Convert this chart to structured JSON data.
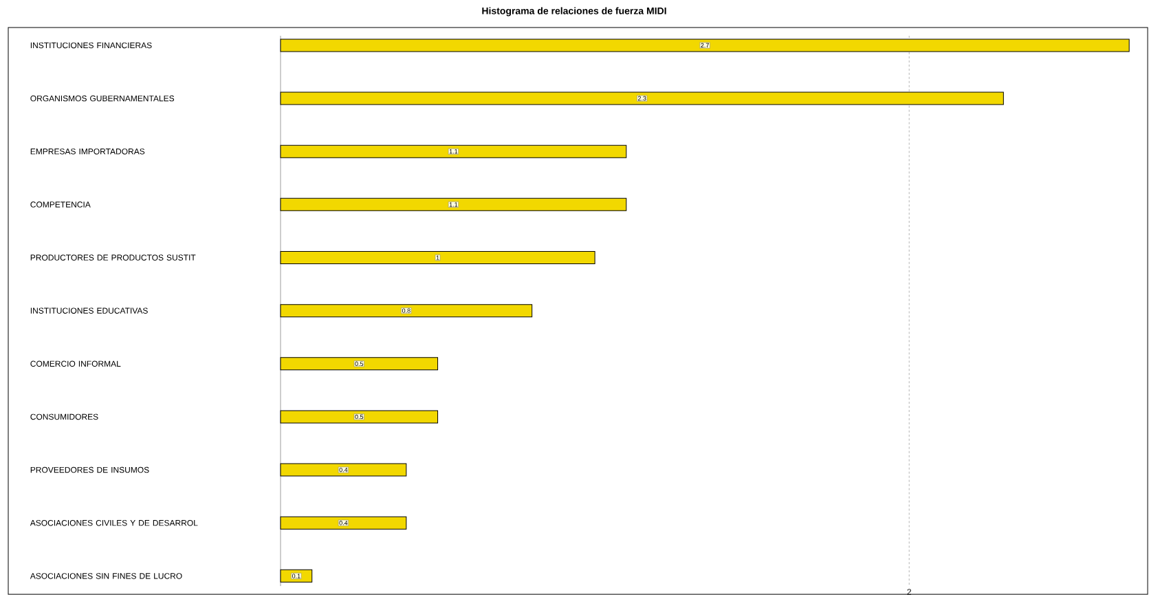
{
  "chart_data": {
    "type": "bar",
    "orientation": "horizontal",
    "title": "Histograma de relaciones de fuerza MIDI",
    "categories": [
      "INSTITUCIONES FINANCIERAS",
      "ORGANISMOS GUBERNAMENTALES",
      "EMPRESAS IMPORTADORAS",
      "COMPETENCIA",
      "PRODUCTORES  DE  PRODUCTOS SUSTIT",
      "INSTITUCIONES EDUCATIVAS",
      "COMERCIO INFORMAL",
      "CONSUMIDORES",
      "PROVEEDORES DE INSUMOS",
      "ASOCIACIONES  CIVILES  Y  DE DESARROL",
      "ASOCIACIONES SIN FINES DE LUCRO"
    ],
    "values": [
      2.7,
      2.3,
      1.1,
      1.1,
      1,
      0.8,
      0.5,
      0.5,
      0.4,
      0.4,
      0.1
    ],
    "color": "#f2d800",
    "xlim": [
      0,
      2.75
    ],
    "xticks": [
      2
    ],
    "grid": "x",
    "data_labels": true
  }
}
